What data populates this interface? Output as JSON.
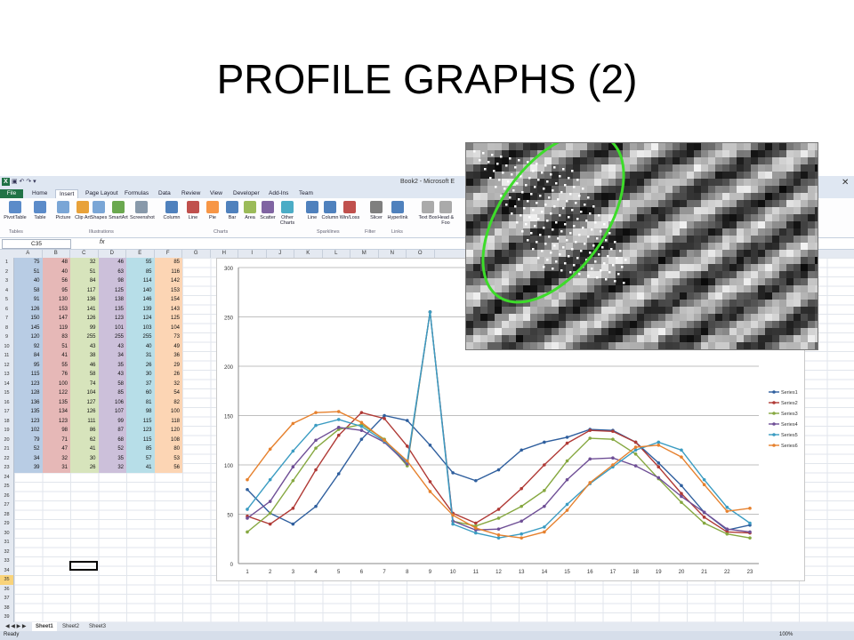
{
  "slide": {
    "title": "PROFILE GRAPHS (2)"
  },
  "excel": {
    "quick_access": "▣ ↶ ↷ ▾",
    "doc_title": "Book2 - Microsoft E",
    "tabs": [
      "File",
      "Home",
      "Insert",
      "Page Layout",
      "Formulas",
      "Data",
      "Review",
      "View",
      "Developer",
      "Add-Ins",
      "Team"
    ],
    "active_tab": "Insert",
    "ribbon_buttons": [
      "PivotTable",
      "Table",
      "Picture",
      "Clip Art",
      "Shapes",
      "SmartArt",
      "Screenshot",
      "Column",
      "Line",
      "Pie",
      "Bar",
      "Area",
      "Scatter",
      "Other Charts",
      "Line",
      "Column",
      "Win/Loss",
      "Slicer",
      "Hyperlink",
      "Text Box",
      "Head & Foo"
    ],
    "ribbon_groups": [
      "Tables",
      "Illustrations",
      "Charts",
      "Sparklines",
      "Filter",
      "Links"
    ],
    "name_box": "C35",
    "fx": "fx",
    "columns": [
      "A",
      "B",
      "C",
      "D",
      "E",
      "F",
      "G",
      "H",
      "I",
      "J",
      "K",
      "L",
      "M",
      "N",
      "O"
    ],
    "rows": [
      "1",
      "2",
      "3",
      "4",
      "5",
      "6",
      "7",
      "8",
      "9",
      "10",
      "11",
      "12",
      "13",
      "14",
      "15",
      "16",
      "17",
      "18",
      "19",
      "20",
      "21",
      "22",
      "23",
      "24",
      "25",
      "26",
      "27",
      "28",
      "29",
      "30",
      "31",
      "32",
      "33",
      "34",
      "35",
      "36",
      "37",
      "38",
      "39"
    ],
    "selected_row": "35",
    "column_colors": [
      "#b8cce4",
      "#e6b8b7",
      "#d7e4bc",
      "#ccc0da",
      "#b7dee8",
      "#fcd5b4"
    ],
    "table": [
      [
        75,
        48,
        32,
        46,
        55,
        85
      ],
      [
        51,
        40,
        51,
        63,
        85,
        116
      ],
      [
        40,
        56,
        84,
        98,
        114,
        142
      ],
      [
        58,
        95,
        117,
        125,
        140,
        153
      ],
      [
        91,
        130,
        136,
        138,
        146,
        154
      ],
      [
        126,
        153,
        141,
        135,
        139,
        143
      ],
      [
        150,
        147,
        126,
        123,
        124,
        125
      ],
      [
        145,
        119,
        99,
        101,
        103,
        104
      ],
      [
        120,
        83,
        255,
        255,
        255,
        73
      ],
      [
        92,
        51,
        43,
        43,
        40,
        49
      ],
      [
        84,
        41,
        38,
        34,
        31,
        36
      ],
      [
        95,
        55,
        46,
        35,
        26,
        29
      ],
      [
        115,
        76,
        58,
        43,
        30,
        26
      ],
      [
        123,
        100,
        74,
        58,
        37,
        32
      ],
      [
        128,
        122,
        104,
        85,
        60,
        54
      ],
      [
        136,
        135,
        127,
        106,
        81,
        82
      ],
      [
        135,
        134,
        126,
        107,
        98,
        100
      ],
      [
        123,
        123,
        111,
        99,
        115,
        118
      ],
      [
        102,
        98,
        86,
        87,
        123,
        120
      ],
      [
        79,
        71,
        62,
        68,
        115,
        108
      ],
      [
        52,
        47,
        41,
        52,
        85,
        80
      ],
      [
        34,
        32,
        30,
        35,
        57,
        53
      ],
      [
        39,
        31,
        26,
        32,
        41,
        56
      ]
    ],
    "sheet_tabs": [
      "Sheet1",
      "Sheet2",
      "Sheet3"
    ],
    "status": "Ready",
    "zoom": "100%",
    "close_glyph": "✕"
  },
  "chart_data": {
    "type": "line",
    "x": [
      1,
      2,
      3,
      4,
      5,
      6,
      7,
      8,
      9,
      10,
      11,
      12,
      13,
      14,
      15,
      16,
      17,
      18,
      19,
      20,
      21,
      22,
      23
    ],
    "ylim": [
      0,
      300
    ],
    "yticks": [
      0,
      50,
      100,
      150,
      200,
      250,
      300
    ],
    "grid": true,
    "legend": "right",
    "series": [
      {
        "name": "Series1",
        "color": "#2f5f9e",
        "values": [
          75,
          51,
          40,
          58,
          91,
          126,
          150,
          145,
          120,
          92,
          84,
          95,
          115,
          123,
          128,
          136,
          135,
          123,
          102,
          79,
          52,
          34,
          39
        ]
      },
      {
        "name": "Series2",
        "color": "#b03a36",
        "values": [
          48,
          40,
          56,
          95,
          130,
          153,
          147,
          119,
          83,
          51,
          41,
          55,
          76,
          100,
          122,
          135,
          134,
          123,
          98,
          71,
          47,
          32,
          31
        ]
      },
      {
        "name": "Series3",
        "color": "#86a840",
        "values": [
          32,
          51,
          84,
          117,
          136,
          141,
          126,
          99,
          255,
          43,
          38,
          46,
          58,
          74,
          104,
          127,
          126,
          111,
          86,
          62,
          41,
          30,
          26
        ]
      },
      {
        "name": "Series4",
        "color": "#6f4f96",
        "values": [
          46,
          63,
          98,
          125,
          138,
          135,
          123,
          101,
          255,
          43,
          34,
          35,
          43,
          58,
          85,
          106,
          107,
          99,
          87,
          68,
          52,
          35,
          32
        ]
      },
      {
        "name": "Series5",
        "color": "#3b9cc2",
        "values": [
          55,
          85,
          114,
          140,
          146,
          139,
          124,
          103,
          255,
          40,
          31,
          26,
          30,
          37,
          60,
          81,
          98,
          115,
          123,
          115,
          85,
          57,
          41
        ]
      },
      {
        "name": "Series6",
        "color": "#e6812e",
        "values": [
          85,
          116,
          142,
          153,
          154,
          143,
          125,
          104,
          73,
          49,
          36,
          29,
          26,
          32,
          54,
          82,
          100,
          118,
          120,
          108,
          80,
          53,
          56
        ]
      }
    ]
  },
  "inset": {
    "label": "Zoomed greyscale image with diagonal sample lines"
  }
}
